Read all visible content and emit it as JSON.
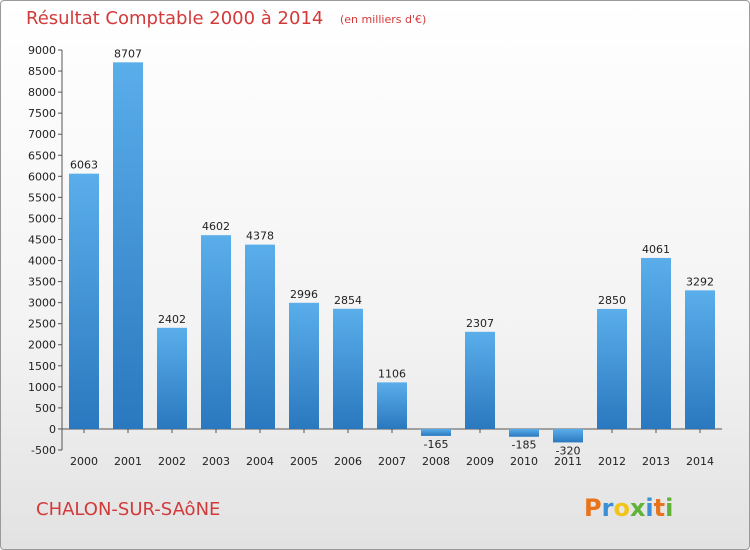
{
  "chart_data": {
    "type": "bar",
    "title": "Résultat Comptable 2000 à 2014",
    "unit_note": "(en milliers d'€)",
    "categories": [
      "2000",
      "2001",
      "2002",
      "2003",
      "2004",
      "2005",
      "2006",
      "2007",
      "2008",
      "2009",
      "2010",
      "2011",
      "2012",
      "2013",
      "2014"
    ],
    "values": [
      6063,
      8707,
      2402,
      4602,
      4378,
      2996,
      2854,
      1106,
      -165,
      2307,
      -185,
      -320,
      2850,
      4061,
      3292
    ],
    "data_labels": [
      "6063",
      "8707",
      "2402",
      "4602",
      "4378",
      "2996",
      "2854",
      "1106",
      "-165",
      "2307",
      "-185",
      "-320",
      "2850",
      "4061",
      "3292"
    ],
    "yticks": [
      -500,
      0,
      500,
      1000,
      1500,
      2000,
      2500,
      3000,
      3500,
      4000,
      4500,
      5000,
      5500,
      6000,
      6500,
      7000,
      7500,
      8000,
      8500,
      9000
    ],
    "ylim": [
      -500,
      9000
    ],
    "xlabel": "",
    "ylabel": "",
    "grid": false,
    "legend": "none",
    "bar_color": "#3a8fd4"
  },
  "footer": {
    "city": "CHALON-SUR-SAôNE",
    "logo_letters": [
      "P",
      "r",
      "o",
      "x",
      "i",
      "t",
      "i"
    ],
    "logo_colors": [
      "#e8731a",
      "#3a8fd4",
      "#f0c419",
      "#5fb336",
      "#3a8fd4",
      "#e8731a",
      "#5fb336"
    ]
  }
}
